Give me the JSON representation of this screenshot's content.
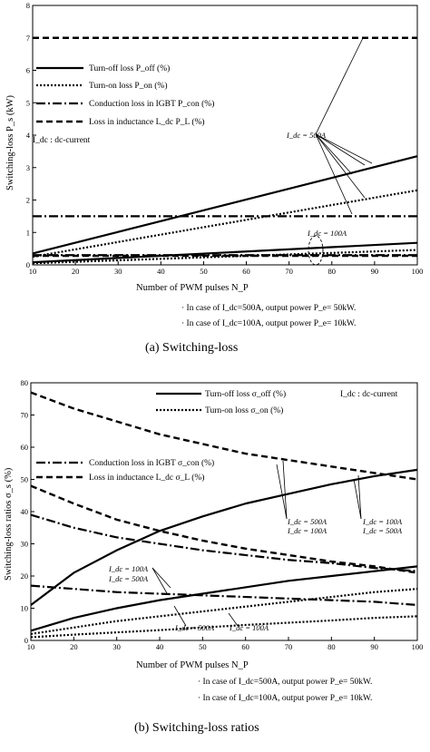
{
  "figure_a": {
    "caption": "(a) Switching-loss",
    "ylabel": "Switching-loss  P_s  (kW)",
    "xlabel": "Number of PWM pulses  N_P",
    "legend": [
      "Turn-off loss  P_off  (%)",
      "Turn-on loss  P_on  (%)",
      "Conduction loss in IGBT  P_con  (%)",
      "Loss in  inductance L_dc  P_L  (%)"
    ],
    "legend_note": "I_dc : dc-current",
    "annotations": [
      "I_dc = 500A",
      "I_dc = 100A"
    ],
    "notes": [
      "· In case of I_dc=500A, output power P_e= 50kW.",
      "· In case of I_dc=100A, output power P_e= 10kW."
    ]
  },
  "figure_b": {
    "caption": "(b) Switching-loss ratios",
    "ylabel": "Switching-loss ratios  σ_s  (%)",
    "xlabel": "Number of PWM pulses  N_P",
    "legend": [
      "Turn-off loss  σ_off  (%)",
      "Turn-on loss  σ_on  (%)",
      "Conduction loss in IGBT  σ_con  (%)",
      "Loss in  inductance L_dc  σ_L  (%)"
    ],
    "legend_note": "I_dc : dc-current",
    "annotations": [
      "I_dc = 500A",
      "I_dc = 100A",
      "I_dc = 100A",
      "I_dc = 500A",
      "I_dc = 100A",
      "I_dc = 500A",
      "I_dc = 500A",
      "I_dc = 100A"
    ],
    "notes": [
      "· In case of I_dc=500A, output power P_e= 50kW.",
      "· In case of I_dc=100A, output power P_e= 10kW."
    ]
  },
  "chart_data": [
    {
      "type": "line",
      "title": "(a) Switching-loss",
      "xlabel": "Number of PWM pulses  N_P",
      "ylabel": "Switching-loss  P_s  (kW)",
      "xlim": [
        10,
        100
      ],
      "ylim": [
        0,
        8
      ],
      "xticks": [
        10,
        20,
        30,
        40,
        50,
        60,
        70,
        80,
        90,
        100
      ],
      "yticks": [
        0,
        1,
        2,
        3,
        4,
        5,
        6,
        7,
        8
      ],
      "grid": false,
      "legend_position": "upper-left",
      "x": [
        10,
        100
      ],
      "series": [
        {
          "name": "Turn-off loss  P_off  (%)",
          "case": "I_dc = 500A",
          "style": "solid",
          "values": [
            0.35,
            3.35
          ]
        },
        {
          "name": "Turn-on loss  P_on  (%)",
          "case": "I_dc = 500A",
          "style": "dotted",
          "values": [
            0.25,
            2.3
          ]
        },
        {
          "name": "Conduction loss in IGBT  P_con  (%)",
          "case": "I_dc = 500A",
          "style": "dashdot",
          "values": [
            1.5,
            1.5
          ]
        },
        {
          "name": "Loss in  inductance L_dc  P_L  (%)",
          "case": "I_dc = 500A",
          "style": "dashed",
          "values": [
            7.0,
            7.0
          ]
        },
        {
          "name": "Turn-off loss  P_off  (%)",
          "case": "I_dc = 100A",
          "style": "solid",
          "values": [
            0.08,
            0.68
          ]
        },
        {
          "name": "Turn-on loss  P_on  (%)",
          "case": "I_dc = 100A",
          "style": "dotted",
          "values": [
            0.05,
            0.46
          ]
        },
        {
          "name": "Conduction loss in IGBT  P_con  (%)",
          "case": "I_dc = 100A",
          "style": "dashdot",
          "values": [
            0.3,
            0.3
          ]
        },
        {
          "name": "Loss in  inductance L_dc  P_L  (%)",
          "case": "I_dc = 100A",
          "style": "dashed",
          "values": [
            0.28,
            0.28
          ]
        }
      ]
    },
    {
      "type": "line",
      "title": "(b) Switching-loss ratios",
      "xlabel": "Number of PWM pulses  N_P",
      "ylabel": "Switching-loss ratios  σ_s  (%)",
      "xlim": [
        10,
        100
      ],
      "ylim": [
        0,
        80
      ],
      "xticks": [
        10,
        20,
        30,
        40,
        50,
        60,
        70,
        80,
        90,
        100
      ],
      "yticks": [
        0,
        10,
        20,
        30,
        40,
        50,
        60,
        70,
        80
      ],
      "grid": false,
      "legend_position": "top",
      "x": [
        10,
        20,
        30,
        40,
        50,
        60,
        70,
        80,
        90,
        100
      ],
      "series": [
        {
          "name": "Turn-off loss  σ_off  (%)",
          "case": "I_dc = 500A",
          "style": "solid",
          "values": [
            11,
            21,
            28,
            34,
            38.5,
            42.5,
            45.5,
            48.5,
            51,
            53
          ]
        },
        {
          "name": "Turn-off loss  σ_off  (%)",
          "case": "I_dc = 100A",
          "style": "solid",
          "values": [
            3,
            7,
            10,
            12.5,
            14.5,
            16.5,
            18.5,
            20,
            21.5,
            23
          ]
        },
        {
          "name": "Turn-on loss  σ_on  (%)",
          "case": "I_dc = 500A",
          "style": "dotted",
          "values": [
            2,
            4,
            6,
            7.5,
            9,
            10.5,
            12,
            13.5,
            15,
            16
          ]
        },
        {
          "name": "Turn-on loss  σ_on  (%)",
          "case": "I_dc = 100A",
          "style": "dotted",
          "values": [
            1,
            1.8,
            2.5,
            3.2,
            4,
            4.8,
            5.5,
            6.2,
            7,
            7.5
          ]
        },
        {
          "name": "Conduction loss in IGBT  σ_con  (%)",
          "case": "I_dc = 500A",
          "style": "dashdot",
          "values": [
            17,
            16,
            15,
            14.5,
            14,
            13.5,
            13,
            12.5,
            12,
            11
          ]
        },
        {
          "name": "Conduction loss in IGBT  σ_con  (%)",
          "case": "I_dc = 100A",
          "style": "dashdot",
          "values": [
            39,
            35,
            32,
            30,
            28,
            26.5,
            25,
            24,
            22.5,
            21.5
          ]
        },
        {
          "name": "Loss in  inductance L_dc  σ_L  (%)",
          "case": "I_dc = 500A",
          "style": "dashed",
          "values": [
            77,
            72,
            68,
            64,
            61,
            58,
            56,
            54,
            52,
            50
          ]
        },
        {
          "name": "Loss in  inductance L_dc  σ_L  (%)",
          "case": "I_dc = 100A",
          "style": "dashed",
          "values": [
            48,
            42.5,
            37.5,
            34,
            31,
            28.5,
            26.5,
            24.5,
            23,
            21
          ]
        }
      ]
    }
  ]
}
